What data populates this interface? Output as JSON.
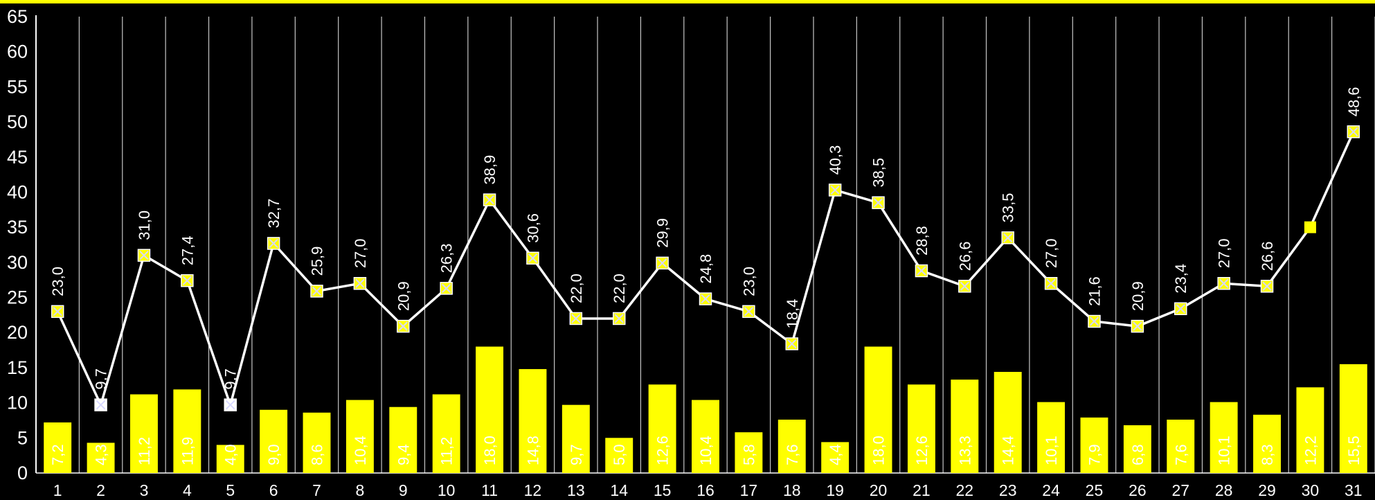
{
  "chart_data": {
    "type": "bar",
    "categories": [
      "1",
      "2",
      "3",
      "4",
      "5",
      "6",
      "7",
      "8",
      "9",
      "10",
      "11",
      "12",
      "13",
      "14",
      "15",
      "16",
      "17",
      "18",
      "19",
      "20",
      "21",
      "22",
      "23",
      "24",
      "25",
      "26",
      "27",
      "28",
      "29",
      "30",
      "31"
    ],
    "series": [
      {
        "type": "bar",
        "values": [
          7.2,
          4.3,
          11.2,
          11.9,
          4.0,
          9.0,
          8.6,
          10.4,
          9.4,
          11.2,
          18.0,
          14.8,
          9.7,
          5.0,
          12.6,
          10.4,
          5.8,
          7.6,
          4.4,
          18.0,
          12.6,
          13.3,
          14.4,
          10.1,
          7.9,
          6.8,
          7.6,
          10.1,
          8.3,
          12.2,
          15.5
        ],
        "labels": [
          "7,2",
          "4,3",
          "11,2",
          "11,9",
          "4,0",
          "9,0",
          "8,6",
          "10,4",
          "9,4",
          "11,2",
          "18,0",
          "14,8",
          "9,7",
          "5,0",
          "12,6",
          "10,4",
          "5,8",
          "7,6",
          "4,4",
          "18,0",
          "12,6",
          "13,3",
          "14,4",
          "10,1",
          "7,9",
          "6,8",
          "7,6",
          "10,1",
          "8,3",
          "12,2",
          "15,5"
        ],
        "color": "#ffff00"
      },
      {
        "type": "line",
        "values": [
          23.0,
          9.7,
          31.0,
          27.4,
          9.7,
          32.7,
          25.9,
          27.0,
          20.9,
          26.3,
          38.9,
          30.6,
          22.0,
          22.0,
          29.9,
          24.8,
          23.0,
          18.4,
          40.3,
          38.5,
          28.8,
          26.6,
          33.5,
          27.0,
          21.6,
          20.9,
          23.4,
          27.0,
          26.6,
          null,
          48.6
        ],
        "labels": [
          "23,0",
          "9,7",
          "31,0",
          "27,4",
          "9,7",
          "32,7",
          "25,9",
          "27,0",
          "20,9",
          "26,3",
          "38,9",
          "30,6",
          "22,0",
          "22,0",
          "29,9",
          "24,8",
          "23,0",
          "18,4",
          "40,3",
          "38,5",
          "28,8",
          "26,6",
          "33,5",
          "27,0",
          "21,6",
          "20,9",
          "23,4",
          "27,0",
          "26,6",
          "",
          "48,6"
        ],
        "color": "#ffffff",
        "marker_color": "#ffff00"
      },
      {
        "type": "marker",
        "points": [
          {
            "x": "30",
            "y": 35.0
          }
        ],
        "color": "#ffff00"
      }
    ],
    "yticks": [
      "0",
      "5",
      "10",
      "15",
      "20",
      "25",
      "30",
      "35",
      "40",
      "45",
      "50",
      "55",
      "60",
      "65"
    ],
    "ylim": [
      0,
      65
    ],
    "grid": "vertical",
    "background": "#000000",
    "frame_color": "#ffff00"
  }
}
